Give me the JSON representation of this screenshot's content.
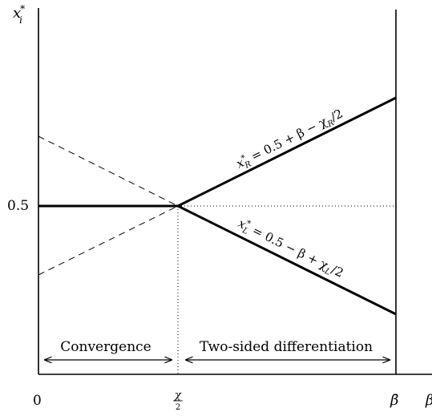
{
  "y_axis_label": {
    "base": "x",
    "sup": "*",
    "sub": "i"
  },
  "x_axis_label": "β",
  "ticks": {
    "y_half": "0.5",
    "x_zero": "0",
    "x_chi_half": {
      "num": "χ",
      "den": "2"
    },
    "x_beta_bar": "β̄"
  },
  "curves": {
    "right": {
      "base": "x",
      "sup": "*",
      "sub": "R",
      "rest": " = 0.5 + β − χ",
      "rest_sub": "R",
      "tail": "/2"
    },
    "left": {
      "base": "x",
      "sup": "*",
      "sub": "L",
      "rest": " = 0.5 − β + χ",
      "rest_sub": "L",
      "tail": "/2"
    }
  },
  "regions": {
    "convergence": "Convergence",
    "two_sided": "Two-sided differentiation"
  }
}
